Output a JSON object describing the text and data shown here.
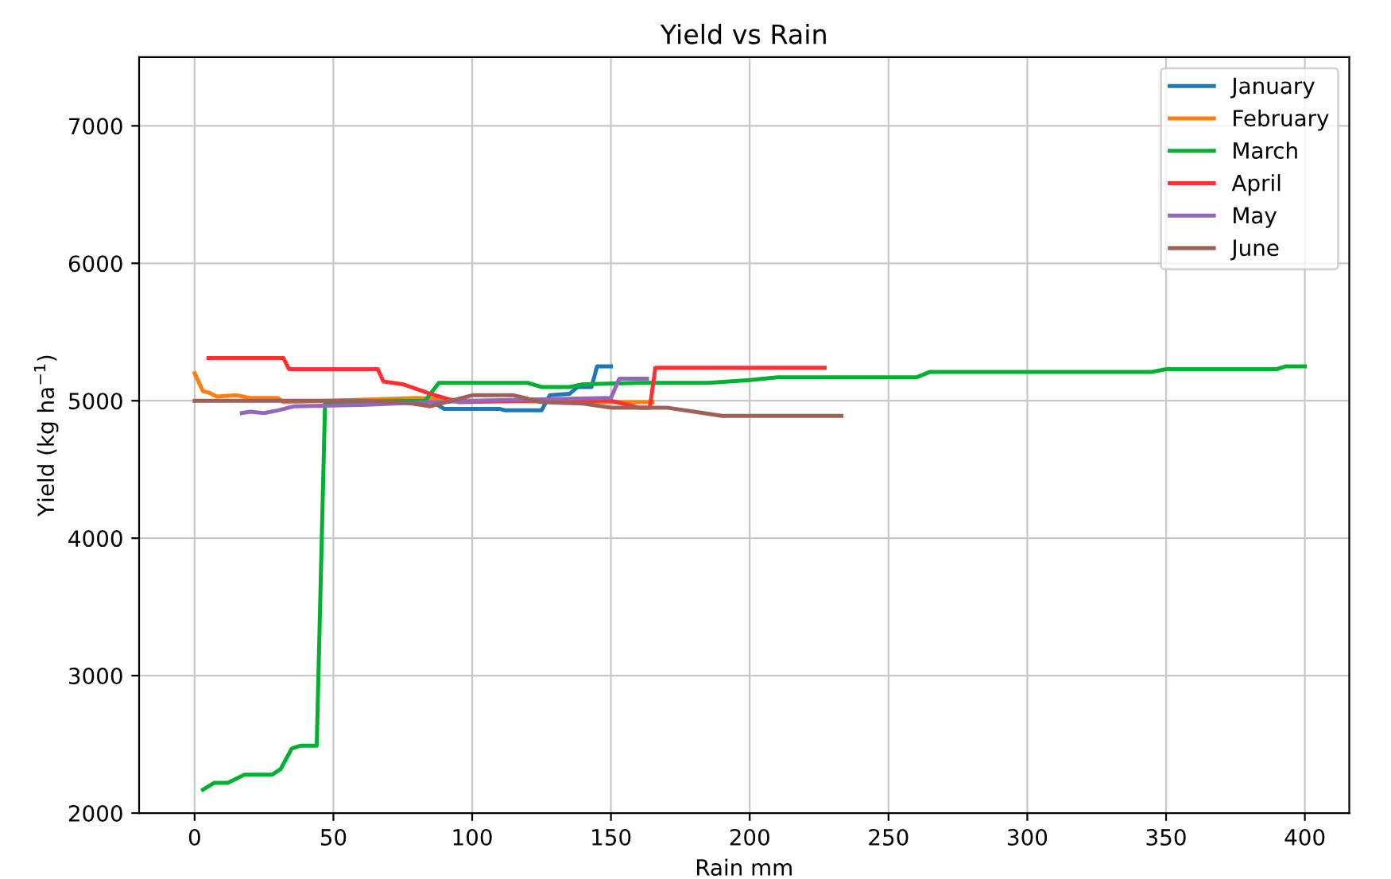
{
  "chart_data": {
    "type": "line",
    "title": "Yield vs Rain",
    "xlabel": "Rain mm",
    "ylabel": "Yield (kg ha$^{−1}$)",
    "xlim": [
      -20,
      416
    ],
    "ylim": [
      2000,
      7500
    ],
    "xticks": [
      0,
      50,
      100,
      150,
      200,
      250,
      300,
      350,
      400
    ],
    "yticks": [
      2000,
      3000,
      4000,
      5000,
      6000,
      7000
    ],
    "grid": true,
    "legend": "top right",
    "line_style": "solid",
    "series": [
      {
        "name": "January",
        "color": "#1f77b4",
        "x": [
          85,
          90,
          110,
          112,
          125,
          128,
          135,
          138,
          143,
          145,
          150
        ],
        "values": [
          5000,
          4940,
          4940,
          4930,
          4930,
          5040,
          5050,
          5100,
          5100,
          5250,
          5250
        ]
      },
      {
        "name": "February",
        "color": "#ff7f0e",
        "x": [
          0,
          3,
          5,
          8,
          15,
          20,
          30,
          32,
          80,
          100,
          150,
          165
        ],
        "values": [
          5200,
          5070,
          5060,
          5030,
          5040,
          5020,
          5020,
          4990,
          5020,
          5000,
          4990,
          4990
        ]
      },
      {
        "name": "March",
        "color": "#00b030",
        "x": [
          3,
          7,
          12,
          18,
          28,
          31,
          35,
          38,
          44,
          47,
          83,
          88,
          120,
          125,
          135,
          140,
          160,
          185,
          200,
          210,
          260,
          265,
          345,
          350,
          390,
          393,
          400
        ],
        "values": [
          2170,
          2220,
          2220,
          2280,
          2280,
          2320,
          2470,
          2490,
          2490,
          4990,
          5000,
          5130,
          5130,
          5100,
          5100,
          5120,
          5130,
          5130,
          5150,
          5170,
          5170,
          5210,
          5210,
          5230,
          5230,
          5250,
          5250
        ]
      },
      {
        "name": "April",
        "color": "#ff3030",
        "x": [
          5,
          32,
          34,
          66,
          68,
          75,
          85,
          95,
          120,
          150,
          160,
          164,
          166,
          227
        ],
        "values": [
          5310,
          5310,
          5230,
          5230,
          5140,
          5120,
          5050,
          4990,
          5000,
          5000,
          4950,
          4950,
          5240,
          5240
        ]
      },
      {
        "name": "May",
        "color": "#9467bd",
        "x": [
          17,
          20,
          25,
          30,
          36,
          60,
          100,
          150,
          153,
          163
        ],
        "values": [
          4910,
          4920,
          4910,
          4930,
          4960,
          4970,
          5000,
          5020,
          5160,
          5160
        ]
      },
      {
        "name": "June",
        "color": "#a0605a",
        "x": [
          0,
          60,
          75,
          85,
          100,
          115,
          125,
          140,
          150,
          170,
          180,
          190,
          233
        ],
        "values": [
          5000,
          5000,
          4990,
          4960,
          5040,
          5040,
          4990,
          4980,
          4950,
          4950,
          4920,
          4890,
          4890
        ]
      }
    ]
  }
}
